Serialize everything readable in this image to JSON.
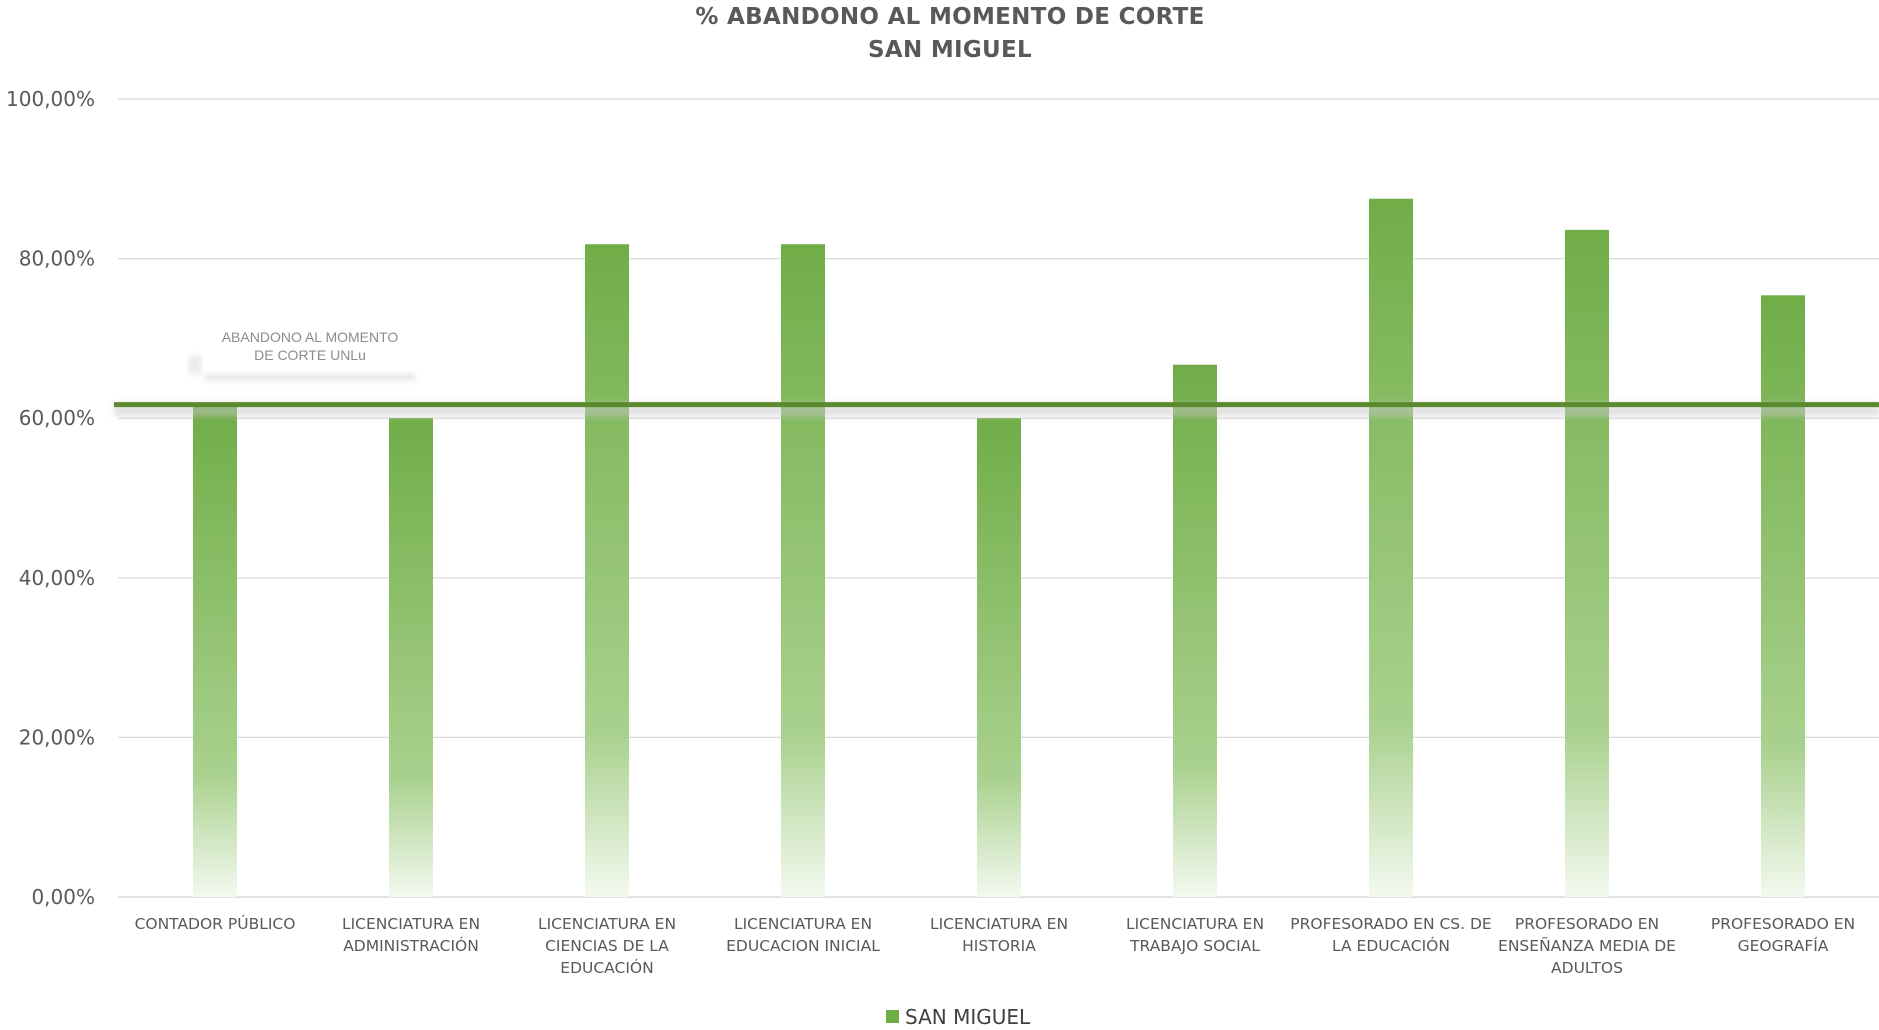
{
  "chart_data": {
    "type": "bar",
    "title": "% ABANDONO AL MOMENTO DE CORTE",
    "subtitle": "SAN MIGUEL",
    "categories": [
      [
        "CONTADOR PÚBLICO"
      ],
      [
        "LICENCIATURA EN",
        "ADMINISTRACIÓN"
      ],
      [
        "LICENCIATURA EN",
        "CIENCIAS DE LA",
        "EDUCACIÓN"
      ],
      [
        "LICENCIATURA EN",
        "EDUCACION INICIAL"
      ],
      [
        "LICENCIATURA EN",
        "HISTORIA"
      ],
      [
        "LICENCIATURA EN",
        "TRABAJO SOCIAL"
      ],
      [
        "PROFESORADO EN CS. DE",
        "LA  EDUCACIÓN"
      ],
      [
        "PROFESORADO EN",
        "ENSEÑANZA MEDIA DE",
        "ADULTOS"
      ],
      [
        "PROFESORADO EN",
        "GEOGRAFÍA"
      ]
    ],
    "series": [
      {
        "name": "SAN MIGUEL",
        "values": [
          61.5,
          60.0,
          81.8,
          81.8,
          60.0,
          66.7,
          87.5,
          83.6,
          75.4
        ]
      }
    ],
    "reference_line": {
      "label": [
        "ABANDONO AL MOMENTO",
        "DE CORTE UNLu"
      ],
      "value": 61.7
    },
    "ylim": [
      0,
      100
    ],
    "yticks": [
      0,
      20,
      40,
      60,
      80,
      100
    ],
    "ytick_labels": [
      "0,00%",
      "20,00%",
      "40,00%",
      "60,00%",
      "80,00%",
      "100,00%"
    ],
    "grid": true,
    "legend_position": "bottom-center",
    "colors": {
      "bar": "#70ad47",
      "reference": "#5b8a2e",
      "axis": "#d9d9d9",
      "text": "#595959"
    }
  }
}
